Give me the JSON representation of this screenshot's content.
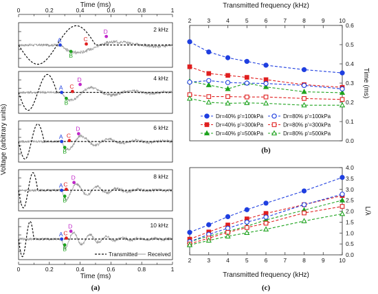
{
  "colors": {
    "dr40": {
      "p100": "#1f3fe0",
      "p300": "#e01f1f",
      "p500": "#1ea31e"
    },
    "dr80": {
      "p100": "#1f3fe0",
      "p300": "#e01f1f",
      "p500": "#1ea31e"
    },
    "pointA": "#1f3fe0",
    "pointB": "#1ea31e",
    "pointC": "#e01f1f",
    "pointD": "#c027c9",
    "transmitted": "#111111",
    "received": "#9a9a9a"
  },
  "panel_labels": {
    "a": "(a)",
    "b": "(b)",
    "c": "(c)"
  },
  "chart_data": [
    {
      "type": "line",
      "panel": "a",
      "xlabel_top": "Time (ms)",
      "xlabel_bottom": "Time (ms)",
      "ylabel": "Voltage (arbitrary units)",
      "xlim": [
        0,
        1
      ],
      "xticks": [
        "0",
        "0.2",
        "0.4",
        "0.6",
        "0.8",
        "1"
      ],
      "legend": {
        "transmitted": "Transmitted",
        "received": "Received"
      },
      "point_labels": [
        "A",
        "B",
        "C",
        "D"
      ],
      "subplots": [
        {
          "freq_label": "2 kHz",
          "freq_khz": 2,
          "A": 0.27,
          "B": 0.34,
          "C": 0.44,
          "D": 0.57
        },
        {
          "freq_label": "4 kHz",
          "freq_khz": 4,
          "A": 0.28,
          "B": 0.31,
          "C": 0.35,
          "D": 0.4
        },
        {
          "freq_label": "6 kHz",
          "freq_khz": 6,
          "A": 0.28,
          "B": 0.3,
          "C": 0.33,
          "D": 0.39
        },
        {
          "freq_label": "8 kHz",
          "freq_khz": 8,
          "A": 0.28,
          "B": 0.3,
          "C": 0.31,
          "D": 0.36
        },
        {
          "freq_label": "10 kHz",
          "freq_khz": 10,
          "A": 0.28,
          "B": 0.3,
          "C": 0.31,
          "D": 0.34
        }
      ]
    },
    {
      "type": "line",
      "panel": "b",
      "xlabel_top": "Transmitted frequency (kHz)",
      "ylabel": "Time (ms)",
      "xlim": [
        2,
        10
      ],
      "ylim": [
        0,
        0.6
      ],
      "xticks": [
        "2",
        "3",
        "4",
        "5",
        "6",
        "7",
        "8",
        "9",
        "10"
      ],
      "yticks": [
        "0.0",
        "0.1",
        "0.2",
        "0.3",
        "0.4",
        "0.5",
        "0.6"
      ],
      "x": [
        2,
        3,
        4,
        5,
        6,
        8,
        10
      ],
      "series": [
        {
          "name": "Dr=40% p'=100kPa",
          "group": "dr40",
          "press": "p100",
          "marker": "circle-filled",
          "values": [
            0.515,
            0.462,
            0.432,
            0.413,
            0.393,
            0.37,
            0.353
          ]
        },
        {
          "name": "Dr=40% p'=300kPa",
          "group": "dr40",
          "press": "p300",
          "marker": "square-filled",
          "values": [
            0.385,
            0.35,
            0.34,
            0.33,
            0.318,
            0.292,
            0.278
          ]
        },
        {
          "name": "Dr=40% p'=500kPa",
          "group": "dr40",
          "press": "p500",
          "marker": "triangle-filled",
          "values": [
            0.31,
            0.29,
            0.27,
            0.3,
            0.28,
            0.255,
            0.25
          ]
        },
        {
          "name": "Dr=80% p'=100kPa",
          "group": "dr80",
          "press": "p100",
          "marker": "circle-open",
          "values": [
            0.305,
            0.313,
            0.303,
            0.3,
            0.298,
            0.288,
            0.27
          ]
        },
        {
          "name": "Dr=80% p'=300kPa",
          "group": "dr80",
          "press": "p300",
          "marker": "square-open",
          "values": [
            0.24,
            0.23,
            0.23,
            0.228,
            0.228,
            0.22,
            0.215
          ]
        },
        {
          "name": "Dr=80% p'=500kPa",
          "group": "dr80",
          "press": "p500",
          "marker": "triangle-open",
          "values": [
            0.22,
            0.2,
            0.195,
            0.197,
            0.195,
            0.185,
            0.185
          ]
        }
      ]
    },
    {
      "type": "line",
      "panel": "c",
      "xlabel": "Transmitted frequency (kHz)",
      "ylabel": "L/λ",
      "xlim": [
        2,
        10
      ],
      "ylim": [
        0,
        4
      ],
      "xticks": [
        "2",
        "3",
        "4",
        "5",
        "6",
        "7",
        "8",
        "9",
        "10"
      ],
      "yticks": [
        "0.0",
        "0.5",
        "1.0",
        "1.5",
        "2.0",
        "2.5",
        "3.0",
        "3.5",
        "4.0"
      ],
      "x": [
        2,
        3,
        4,
        5,
        6,
        8,
        10
      ],
      "series": [
        {
          "name": "Dr=40% p'=100kPa",
          "group": "dr40",
          "press": "p100",
          "marker": "circle-filled",
          "values": [
            1.03,
            1.38,
            1.75,
            2.07,
            2.37,
            2.93,
            3.55
          ]
        },
        {
          "name": "Dr=40% p'=300kPa",
          "group": "dr40",
          "press": "p300",
          "marker": "square-filled",
          "values": [
            0.72,
            1.05,
            1.37,
            1.65,
            1.9,
            2.3,
            2.72
          ]
        },
        {
          "name": "Dr=40% p'=500kPa",
          "group": "dr40",
          "press": "p500",
          "marker": "triangle-filled",
          "values": [
            0.6,
            0.86,
            1.08,
            1.31,
            1.6,
            2.05,
            2.5
          ]
        },
        {
          "name": "Dr=80% p'=100kPa",
          "group": "dr80",
          "press": "p100",
          "marker": "circle-open",
          "values": [
            0.6,
            0.94,
            1.22,
            1.5,
            1.73,
            2.3,
            2.78
          ]
        },
        {
          "name": "Dr=80% p'=300kPa",
          "group": "dr80",
          "press": "p300",
          "marker": "square-open",
          "values": [
            0.5,
            0.77,
            1.03,
            1.25,
            1.45,
            1.92,
            2.22
          ]
        },
        {
          "name": "Dr=80% p'=500kPa",
          "group": "dr80",
          "press": "p500",
          "marker": "triangle-open",
          "values": [
            0.45,
            0.66,
            0.85,
            1.01,
            1.17,
            1.55,
            1.88
          ]
        }
      ]
    }
  ]
}
